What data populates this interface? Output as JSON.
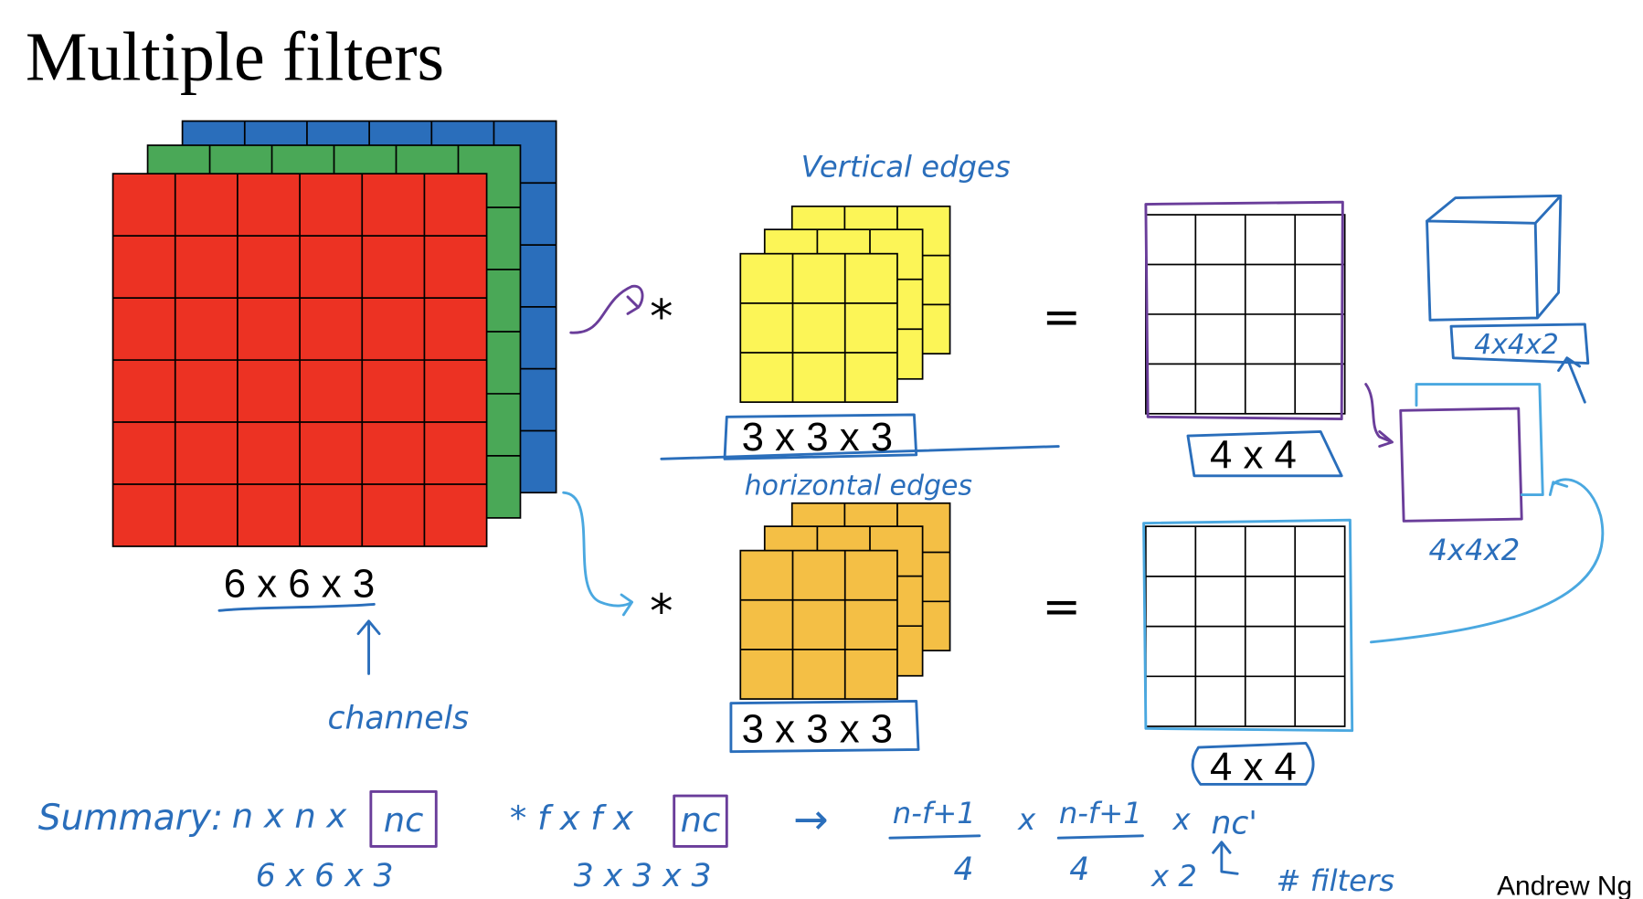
{
  "title": "Multiple filters",
  "input": {
    "label": "6 x 6 x 3",
    "note": "channels"
  },
  "filters": [
    {
      "note": "Vertical edges",
      "operator": "*",
      "label": "3 x 3 x 3",
      "equals": "=",
      "output": "4 x 4"
    },
    {
      "note": "horizontal edges",
      "operator": "*",
      "label": "3 x 3 x 3",
      "equals": "=",
      "output": "4 x 4"
    }
  ],
  "stacked": {
    "cube_label": "4x4x2",
    "output_label": "4x4x2"
  },
  "summary": {
    "heading": "Summary:",
    "input": "n x n x",
    "input_channels": "nc",
    "input_example": "6 x 6 x 3",
    "filter": "* f x f x",
    "filter_channels": "nc",
    "filter_example": "3 x 3 x 3",
    "arrow": "→",
    "height": "n-f+1",
    "height_example": "4",
    "times1": "x",
    "width": "n-f+1",
    "width_example": "4",
    "times2": "x",
    "channels": "nc'",
    "channels_example": "x 2",
    "filters_note": "# filters"
  },
  "credit": "Andrew Ng"
}
